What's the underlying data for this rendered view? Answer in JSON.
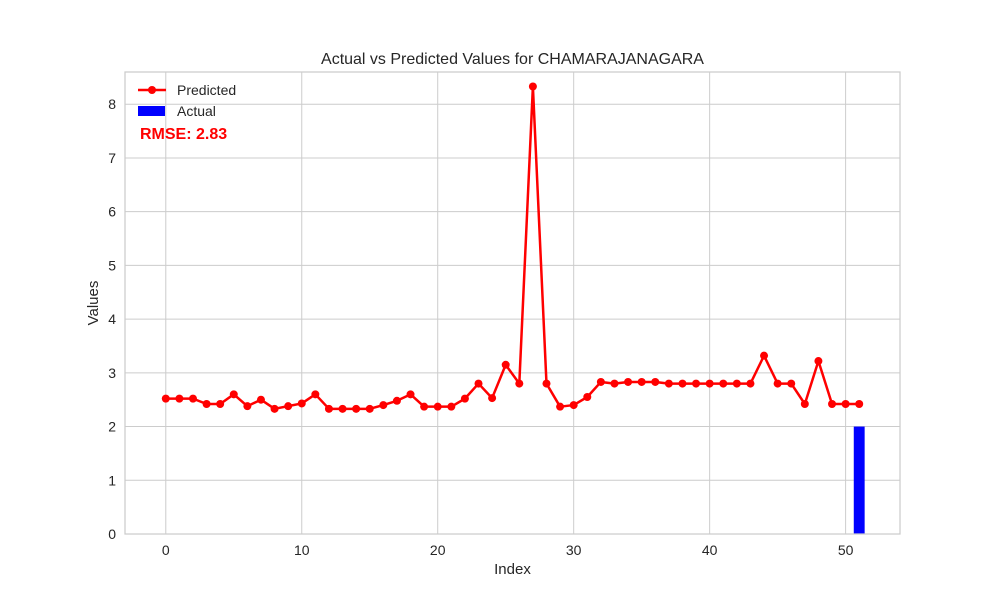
{
  "chart_data": {
    "type": "line",
    "title": "Actual vs Predicted Values for CHAMARAJANAGARA",
    "xlabel": "Index",
    "ylabel": "Values",
    "xlim": [
      -3,
      54
    ],
    "ylim": [
      0,
      8.6
    ],
    "xticks": [
      0,
      10,
      20,
      30,
      40,
      50
    ],
    "yticks": [
      0,
      1,
      2,
      3,
      4,
      5,
      6,
      7,
      8
    ],
    "grid": true,
    "legend_position": "top-left",
    "annotation": "RMSE: 2.83",
    "annotation_color": "#ff0000",
    "series": [
      {
        "name": "Predicted",
        "kind": "line",
        "color": "#ff0000",
        "x": [
          0,
          1,
          2,
          3,
          4,
          5,
          6,
          7,
          8,
          9,
          10,
          11,
          12,
          13,
          14,
          15,
          16,
          17,
          18,
          19,
          20,
          21,
          22,
          23,
          24,
          25,
          26,
          27,
          28,
          29,
          30,
          31,
          32,
          33,
          34,
          35,
          36,
          37,
          38,
          39,
          40,
          41,
          42,
          43,
          44,
          45,
          46,
          47,
          48,
          49,
          50,
          51
        ],
        "values": [
          2.52,
          2.52,
          2.52,
          2.42,
          2.42,
          2.6,
          2.38,
          2.5,
          2.33,
          2.38,
          2.43,
          2.6,
          2.33,
          2.33,
          2.33,
          2.33,
          2.4,
          2.48,
          2.6,
          2.37,
          2.37,
          2.37,
          2.52,
          2.8,
          2.53,
          3.15,
          2.8,
          8.33,
          2.8,
          2.37,
          2.4,
          2.55,
          2.83,
          2.8,
          2.83,
          2.83,
          2.83,
          2.8,
          2.8,
          2.8,
          2.8,
          2.8,
          2.8,
          2.8,
          3.32,
          2.8,
          2.8,
          2.42,
          3.22,
          2.42,
          2.42,
          2.42
        ]
      },
      {
        "name": "Actual",
        "kind": "bar",
        "color": "#0000ff",
        "x": [
          51
        ],
        "values": [
          2.0
        ]
      }
    ]
  }
}
